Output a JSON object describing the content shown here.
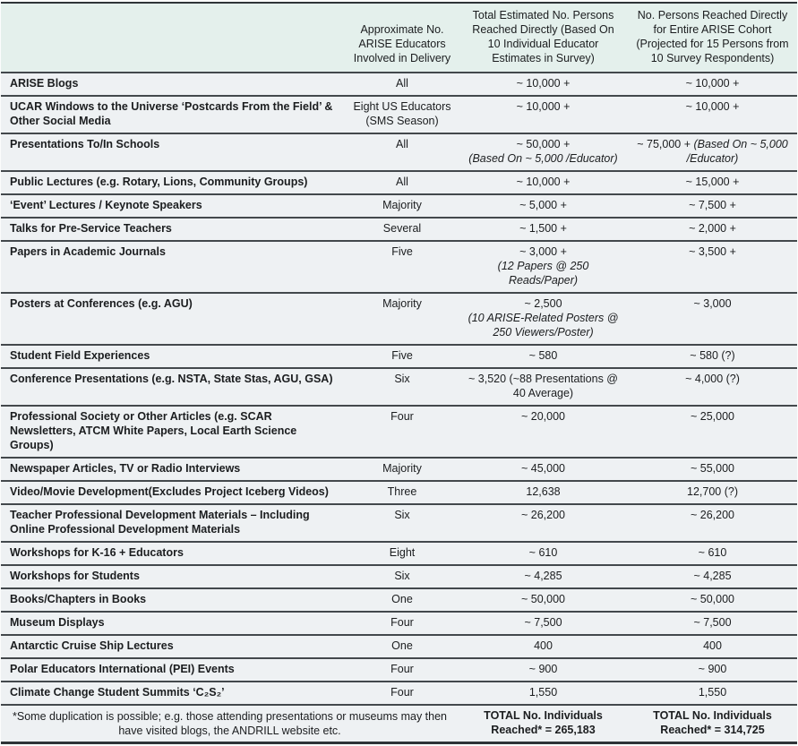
{
  "table": {
    "columns": [
      "",
      "Approximate No. ARISE Educators Involved in Delivery",
      "Total Estimated No. Persons Reached Directly (Based On 10 Individual Educator Estimates in Survey)",
      "No. Persons Reached Directly for Entire ARISE Cohort (Projected for 15 Persons from 10 Survey Respondents)"
    ],
    "rows": [
      {
        "activity": "ARISE Blogs",
        "educators": "All",
        "reached": "~ 10,000 +",
        "cohort": "~ 10,000 +"
      },
      {
        "activity": "UCAR Windows to the Universe ‘Postcards From the Field’ & Other Social Media",
        "educators": "Eight US Educators (SMS Season)",
        "reached": "~ 10,000 +",
        "cohort": "~ 10,000 +"
      },
      {
        "activity": "Presentations To/In Schools",
        "educators": "All",
        "reached": "~ 50,000 +",
        "reached_note_lines": [
          "(Based On ~ 5,000 /Educator)"
        ],
        "cohort": "~ 75,000 +",
        "cohort_note_inline": "(Based On ~ 5,000 /Educator)"
      },
      {
        "activity": "Public Lectures (e.g. Rotary, Lions, Community Groups)",
        "educators": "All",
        "reached": "~ 10,000 +",
        "cohort": "~ 15,000 +"
      },
      {
        "activity": "‘Event’ Lectures / Keynote Speakers",
        "educators": "Majority",
        "reached": "~ 5,000 +",
        "cohort": "~ 7,500 +"
      },
      {
        "activity": "Talks for Pre-Service Teachers",
        "educators": "Several",
        "reached": "~ 1,500 +",
        "cohort": "~ 2,000 +"
      },
      {
        "activity": "Papers in Academic Journals",
        "educators": "Five",
        "reached": "~ 3,000 +",
        "reached_note_lines": [
          "(12 Papers @ 250",
          "Reads/Paper)"
        ],
        "cohort": "~ 3,500 +"
      },
      {
        "activity": "Posters at Conferences (e.g. AGU)",
        "educators": "Majority",
        "reached": "~ 2,500",
        "reached_note_lines": [
          "(10 ARISE-Related Posters @",
          "250 Viewers/Poster)"
        ],
        "cohort": "~ 3,000"
      },
      {
        "activity": "Student Field Experiences",
        "educators": "Five",
        "reached": "~ 580",
        "cohort": "~ 580 (?)"
      },
      {
        "activity": "Conference Presentations (e.g. NSTA, State Stas, AGU, GSA)",
        "educators": "Six",
        "reached": "~ 3,520 (~88 Presentations @ 40 Average)",
        "cohort": "~ 4,000 (?)"
      },
      {
        "activity": "Professional Society or Other Articles (e.g. SCAR Newsletters, ATCM White Papers, Local Earth Science Groups)",
        "educators": "Four",
        "reached": "~ 20,000",
        "cohort": "~ 25,000"
      },
      {
        "activity": "Newspaper Articles, TV or Radio Interviews",
        "educators": "Majority",
        "reached": "~ 45,000",
        "cohort": "~ 55,000"
      },
      {
        "activity": "Video/Movie Development(Excludes Project Iceberg Videos)",
        "educators": "Three",
        "reached": "12,638",
        "cohort": "12,700 (?)"
      },
      {
        "activity": "Teacher Professional Development Materials – Including Online Professional Development Materials",
        "educators": "Six",
        "reached": "~ 26,200",
        "cohort": "~ 26,200"
      },
      {
        "activity": "Workshops for K-16 + Educators",
        "educators": "Eight",
        "reached": "~ 610",
        "cohort": "~ 610"
      },
      {
        "activity": "Workshops for Students",
        "educators": "Six",
        "reached": "~ 4,285",
        "cohort": "~ 4,285"
      },
      {
        "activity": "Books/Chapters in Books",
        "educators": "One",
        "reached": "~ 50,000",
        "cohort": "~ 50,000"
      },
      {
        "activity": "Museum Displays",
        "educators": "Four",
        "reached": "~ 7,500",
        "cohort": "~ 7,500"
      },
      {
        "activity": "Antarctic Cruise Ship Lectures",
        "educators": "One",
        "reached": "400",
        "cohort": "400"
      },
      {
        "activity": "Polar Educators International (PEI) Events",
        "educators": "Four",
        "reached": "~ 900",
        "cohort": "~ 900"
      },
      {
        "activity": "Climate Change Student Summits ‘C₂S₂’",
        "educators": "Four",
        "reached": "1,550",
        "cohort": "1,550"
      }
    ],
    "footer": {
      "note_lines": [
        "*Some duplication is possible; e.g. those attending presentations or museums may then",
        "have visited blogs, the ANDRILL website etc."
      ],
      "total_reached": "TOTAL No. Individuals Reached* = 265,183",
      "total_cohort": "TOTAL No. Individuals Reached* = 314,725"
    }
  },
  "colors": {
    "header_bg": "#e4f0ec",
    "row_bg": "#eef1f3",
    "rule": "#43484c",
    "outer_rule": "#2f3438"
  }
}
